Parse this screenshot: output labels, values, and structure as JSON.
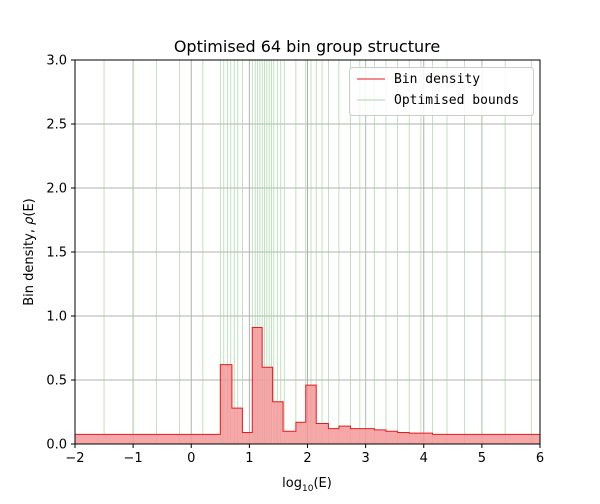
{
  "chart_data": {
    "type": "area",
    "title": "Optimised 64 bin group structure",
    "xlabel_base": "log",
    "xlabel_sub": "10",
    "xlabel_tail": "(E)",
    "ylabel_main": "Bin density, ",
    "ylabel_sym": "ρ",
    "ylabel_arg": "(E)",
    "xlim": [
      -2,
      6
    ],
    "ylim": [
      0,
      3.0
    ],
    "xticks": [
      -2,
      -1,
      0,
      1,
      2,
      3,
      4,
      5,
      6
    ],
    "xtick_labels": [
      "−2",
      "−1",
      "0",
      "1",
      "2",
      "3",
      "4",
      "5",
      "6"
    ],
    "yticks": [
      0,
      0.5,
      1.0,
      1.5,
      2.0,
      2.5,
      3.0
    ],
    "ytick_labels": [
      "0.0",
      "0.5",
      "1.0",
      "1.5",
      "2.0",
      "2.5",
      "3.0"
    ],
    "grid": true,
    "legend_position": "top-right",
    "colors": {
      "density_line": "#e8191c",
      "density_fill": "#f4999a",
      "bounds_line": "#a8d5a8",
      "grid": "#b0b0b0"
    },
    "series": [
      {
        "name": "Bin density",
        "kind": "step",
        "edges": [
          -2,
          0.5,
          0.7,
          0.88,
          1.05,
          1.22,
          1.4,
          1.58,
          1.8,
          1.97,
          2.15,
          2.36,
          2.54,
          2.74,
          3.15,
          3.35,
          3.55,
          3.75,
          4.15,
          6
        ],
        "values": [
          0.075,
          0.62,
          0.28,
          0.09,
          0.91,
          0.6,
          0.33,
          0.1,
          0.17,
          0.46,
          0.16,
          0.12,
          0.14,
          0.12,
          0.11,
          0.1,
          0.09,
          0.085,
          0.075
        ]
      },
      {
        "name": "Optimised bounds",
        "kind": "vlines",
        "positions": [
          -2.0,
          -1.5,
          -1.0,
          -0.6,
          -0.2,
          0.2,
          0.5,
          0.56,
          0.62,
          0.68,
          0.74,
          0.8,
          0.88,
          1.05,
          1.1,
          1.14,
          1.18,
          1.22,
          1.26,
          1.3,
          1.34,
          1.38,
          1.42,
          1.48,
          1.54,
          1.6,
          1.8,
          1.97,
          2.06,
          2.15,
          2.25,
          2.36,
          2.54,
          2.74,
          2.9,
          3.0,
          3.15,
          3.35,
          3.55,
          3.75,
          3.95,
          4.15,
          4.4,
          4.7,
          5.0,
          5.4,
          5.85,
          6.0
        ]
      }
    ]
  }
}
